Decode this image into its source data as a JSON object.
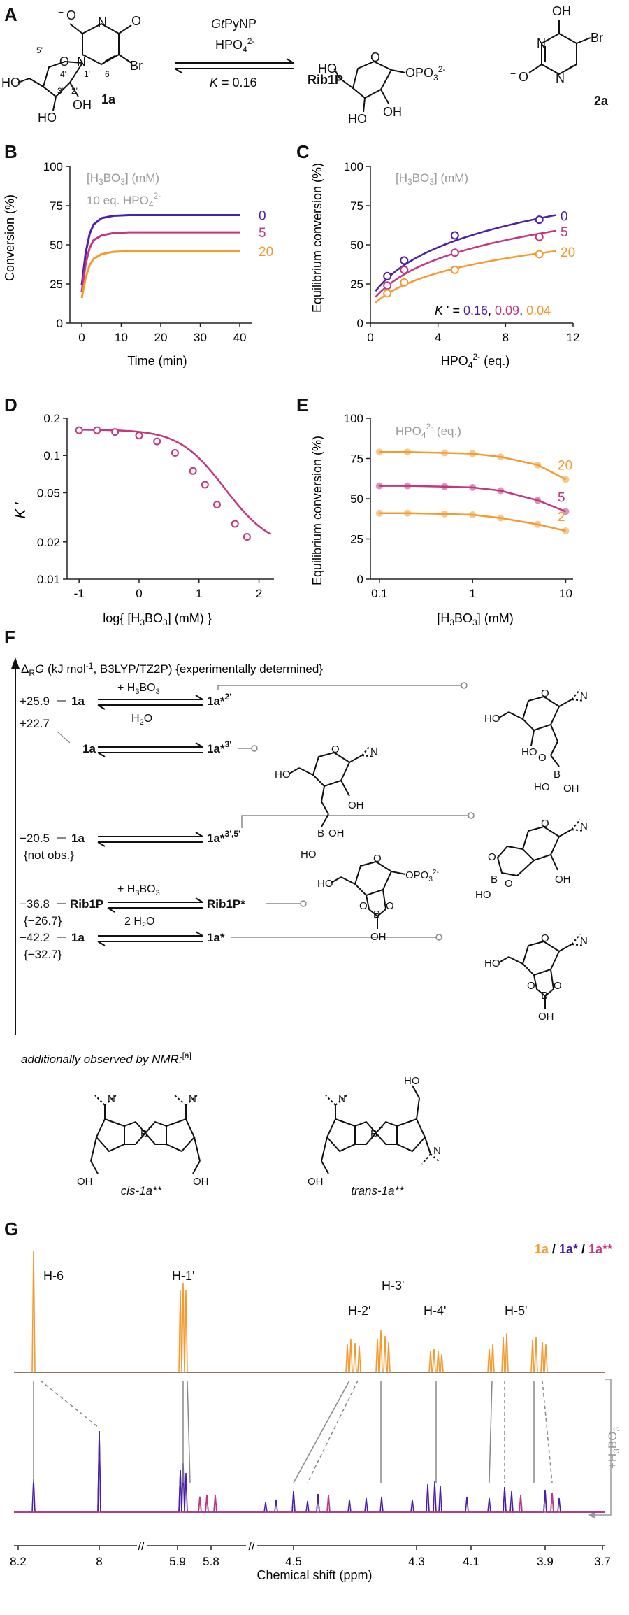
{
  "colors": {
    "c0": "#4b1fa8",
    "c5": "#c2377f",
    "c20": "#f59a2e",
    "grey": "#9a9a9a",
    "axis": "#222222"
  },
  "panelA": {
    "label": "A",
    "enzyme_italic": "Gt",
    "enzyme_rest": "PyNP",
    "reagent": "HPO",
    "reagent_sub": "4",
    "reagent_sup": "2-",
    "K_label": "K",
    "K_value": " = 0.16",
    "compound1": "1a",
    "compound2": "Rib1P",
    "compound3": "2a",
    "atoms": {
      "Br": "Br",
      "O": "O",
      "N": "N",
      "OH": "OH",
      "HO": "HO",
      "OPO3": "OPO",
      "n5p": "5'",
      "n4p": "4'",
      "n3p": "3'",
      "n2p": "2'",
      "n1p": "1'",
      "n6": "6"
    }
  },
  "panelB": {
    "label": "B",
    "legend_title": "[H3BO3] (mM)",
    "legend2": "10 eq. HPO4 2-",
    "chart_data": {
      "type": "line",
      "xlabel": "Time (min)",
      "ylabel": "Conversion (%)",
      "xlim": [
        -3,
        43
      ],
      "ylim": [
        0,
        100
      ],
      "xticks": [
        "0",
        "10",
        "20",
        "30",
        "40"
      ],
      "yticks": [
        "0",
        "25",
        "50",
        "75",
        "100"
      ],
      "series": [
        {
          "name": "0",
          "values_x": [
            0,
            1,
            2,
            3,
            5,
            8,
            12,
            20,
            30,
            40
          ],
          "values_y": [
            24,
            45,
            57,
            63,
            67,
            68.5,
            69,
            69,
            69,
            69
          ]
        },
        {
          "name": "5",
          "values_x": [
            0,
            1,
            2,
            3,
            5,
            8,
            12,
            20,
            30,
            40
          ],
          "values_y": [
            20,
            38,
            48,
            53,
            56,
            57.5,
            58,
            58,
            58,
            58
          ]
        },
        {
          "name": "20",
          "values_x": [
            0,
            1,
            2,
            3,
            5,
            8,
            12,
            20,
            30,
            40
          ],
          "values_y": [
            16,
            29,
            37,
            41,
            44,
            45.5,
            46,
            46,
            46,
            46
          ]
        }
      ]
    }
  },
  "panelC": {
    "label": "C",
    "legend_title": "[H3BO3] (mM)",
    "k_prefix": "K ' = ",
    "k_values": [
      "0.16",
      "0.09",
      "0.04"
    ],
    "chart_data": {
      "type": "scatter",
      "xlabel": "HPO4 2- (eq.)",
      "ylabel": "Equilibrium conversion (%)",
      "xlim": [
        0,
        12
      ],
      "ylim": [
        0,
        100
      ],
      "xticks": [
        "0",
        "4",
        "8",
        "12"
      ],
      "yticks": [
        "0",
        "25",
        "50",
        "75",
        "100"
      ],
      "series": [
        {
          "name": "0",
          "points_x": [
            1,
            2,
            5,
            10
          ],
          "points_y": [
            30,
            40,
            56,
            66
          ],
          "fit_y_at_11": 69
        },
        {
          "name": "5",
          "points_x": [
            1,
            2,
            5,
            10
          ],
          "points_y": [
            24,
            34,
            45,
            55
          ],
          "fit_y_at_11": 59
        },
        {
          "name": "20",
          "points_x": [
            1,
            2,
            5,
            10
          ],
          "points_y": [
            19,
            26,
            34,
            44
          ],
          "fit_y_at_11": 46
        }
      ]
    }
  },
  "panelD": {
    "label": "D",
    "chart_data": {
      "type": "line",
      "xlabel": "log{ [H3BO3] (mM) }",
      "ylabel": "K '",
      "xlim": [
        -1.2,
        2.25
      ],
      "ylim": [
        0.01,
        0.2
      ],
      "yscale": "log",
      "xticks": [
        "-1",
        "0",
        "1",
        "2"
      ],
      "yticks": [
        "0.01",
        "0.02",
        "0.05",
        "0.1",
        "0.2"
      ],
      "points_x": [
        -1,
        -0.7,
        -0.4,
        0,
        0.3,
        0.6,
        0.9,
        1.1,
        1.3,
        1.6,
        1.8
      ],
      "points_y": [
        0.16,
        0.16,
        0.155,
        0.145,
        0.13,
        0.105,
        0.075,
        0.058,
        0.04,
        0.028,
        0.022
      ]
    }
  },
  "panelE": {
    "label": "E",
    "legend_title": "HPO4 2- (eq.)",
    "chart_data": {
      "type": "scatter",
      "xlabel": "[H3BO3] (mM)",
      "ylabel": "Equilibrium conversion (%)",
      "xscale": "log",
      "xlim": [
        0.08,
        12
      ],
      "ylim": [
        0,
        100
      ],
      "xticks": [
        "0.1",
        "1",
        "10"
      ],
      "yticks": [
        "0",
        "25",
        "50",
        "75",
        "100"
      ],
      "series": [
        {
          "name": "20",
          "points_x": [
            0.1,
            0.2,
            0.5,
            1,
            2,
            5,
            10
          ],
          "points_y": [
            79,
            79,
            78.5,
            78,
            76,
            71,
            62
          ]
        },
        {
          "name": "5",
          "points_x": [
            0.1,
            0.2,
            0.5,
            1,
            2,
            5,
            10
          ],
          "points_y": [
            58,
            58,
            57.5,
            57,
            55,
            49,
            42
          ]
        },
        {
          "name": "2",
          "points_x": [
            0.1,
            0.2,
            0.5,
            1,
            2,
            5,
            10
          ],
          "points_y": [
            41,
            41,
            40.5,
            40,
            38,
            34,
            30
          ]
        }
      ]
    }
  },
  "panelF": {
    "label": "F",
    "header": "ΔRG (kJ mol-1, B3LYP/TZ2P) {experimentally determined}",
    "rows": [
      {
        "energy": "+25.9",
        "reactant": "1a",
        "product": "1a*2'",
        "top": "+ H3BO3",
        "bottom": "H2O"
      },
      {
        "energy": "+22.7",
        "reactant": "1a",
        "product": "1a*3'"
      },
      {
        "energy": "−20.5",
        "exp": "{not obs.}",
        "reactant": "1a",
        "product": "1a*3',5'"
      },
      {
        "energy": "−36.8",
        "exp": "{−26.7}",
        "reactant": "Rib1P",
        "product": "Rib1P*",
        "top": "+ H3BO3",
        "bottom": "2 H2O"
      },
      {
        "energy": "−42.2",
        "exp": "{−32.7}",
        "reactant": "1a",
        "product": "1a*"
      }
    ],
    "nmr_note": "additionally observed by NMR:",
    "nmr_note_ref": "[a]",
    "cis_label": "cis-1a**",
    "trans_label": "trans-1a**"
  },
  "panelG": {
    "label": "G",
    "legend": [
      "1a",
      " / ",
      "1a*",
      " / ",
      "1a**"
    ],
    "peak_labels": [
      "H-6",
      "H-1'",
      "H-2'",
      "H-3'",
      "H-4'",
      "H-5'"
    ],
    "side_label": "+H3BO3",
    "chart_data": {
      "type": "line",
      "xlabel": "Chemical shift (ppm)",
      "axis_breaks": true,
      "xticks": [
        "8.2",
        "8",
        "5.9",
        "5.8",
        "4.5",
        "4.3",
        "4.1",
        "3.9",
        "3.7"
      ]
    }
  }
}
